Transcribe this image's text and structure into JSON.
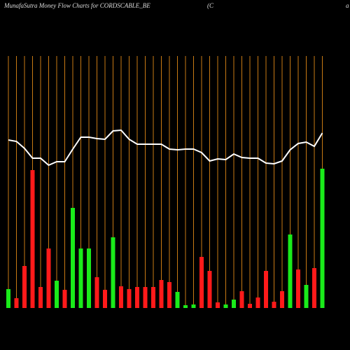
{
  "chart_data": {
    "type": "bar",
    "title": "MunafaSutra  Money Flow  Charts for CORDSCABLE_BE",
    "subtitle": "(C",
    "note": "a",
    "ylim": [
      0,
      360
    ],
    "values": [
      27,
      14,
      60,
      197,
      30,
      85,
      39,
      26,
      143,
      85,
      85,
      44,
      26,
      101,
      31,
      27,
      30,
      30,
      30,
      40,
      37,
      23,
      4,
      5,
      73,
      53,
      8,
      5,
      12,
      24,
      6,
      15,
      53,
      9,
      24,
      105,
      55,
      33,
      57,
      199
    ],
    "colors": [
      "#1aeb1a",
      "#ff1a1a",
      "#ff1a1a",
      "#ff1a1a",
      "#ff1a1a",
      "#ff1a1a",
      "#1aeb1a",
      "#ff1a1a",
      "#1aeb1a",
      "#1aeb1a",
      "#1aeb1a",
      "#ff1a1a",
      "#ff1a1a",
      "#1aeb1a",
      "#ff1a1a",
      "#ff1a1a",
      "#ff1a1a",
      "#ff1a1a",
      "#ff1a1a",
      "#ff1a1a",
      "#ff1a1a",
      "#1aeb1a",
      "#1aeb1a",
      "#1aeb1a",
      "#ff1a1a",
      "#ff1a1a",
      "#ff1a1a",
      "#1aeb1a",
      "#1aeb1a",
      "#ff1a1a",
      "#ff1a1a",
      "#ff1a1a",
      "#ff1a1a",
      "#ff1a1a",
      "#ff1a1a",
      "#1aeb1a",
      "#ff1a1a",
      "#1aeb1a",
      "#ff1a1a",
      "#1aeb1a"
    ],
    "line_values": [
      240,
      238,
      228,
      214,
      214,
      204,
      209,
      209,
      227,
      244,
      244,
      242,
      241,
      253,
      254,
      241,
      234,
      234,
      234,
      234,
      227,
      226,
      227,
      227,
      222,
      210,
      213,
      212,
      220,
      215,
      214,
      214,
      207,
      206,
      210,
      226,
      235,
      237,
      231,
      250
    ],
    "line_color": "#ffffff",
    "grid_color": "#c87a14"
  }
}
